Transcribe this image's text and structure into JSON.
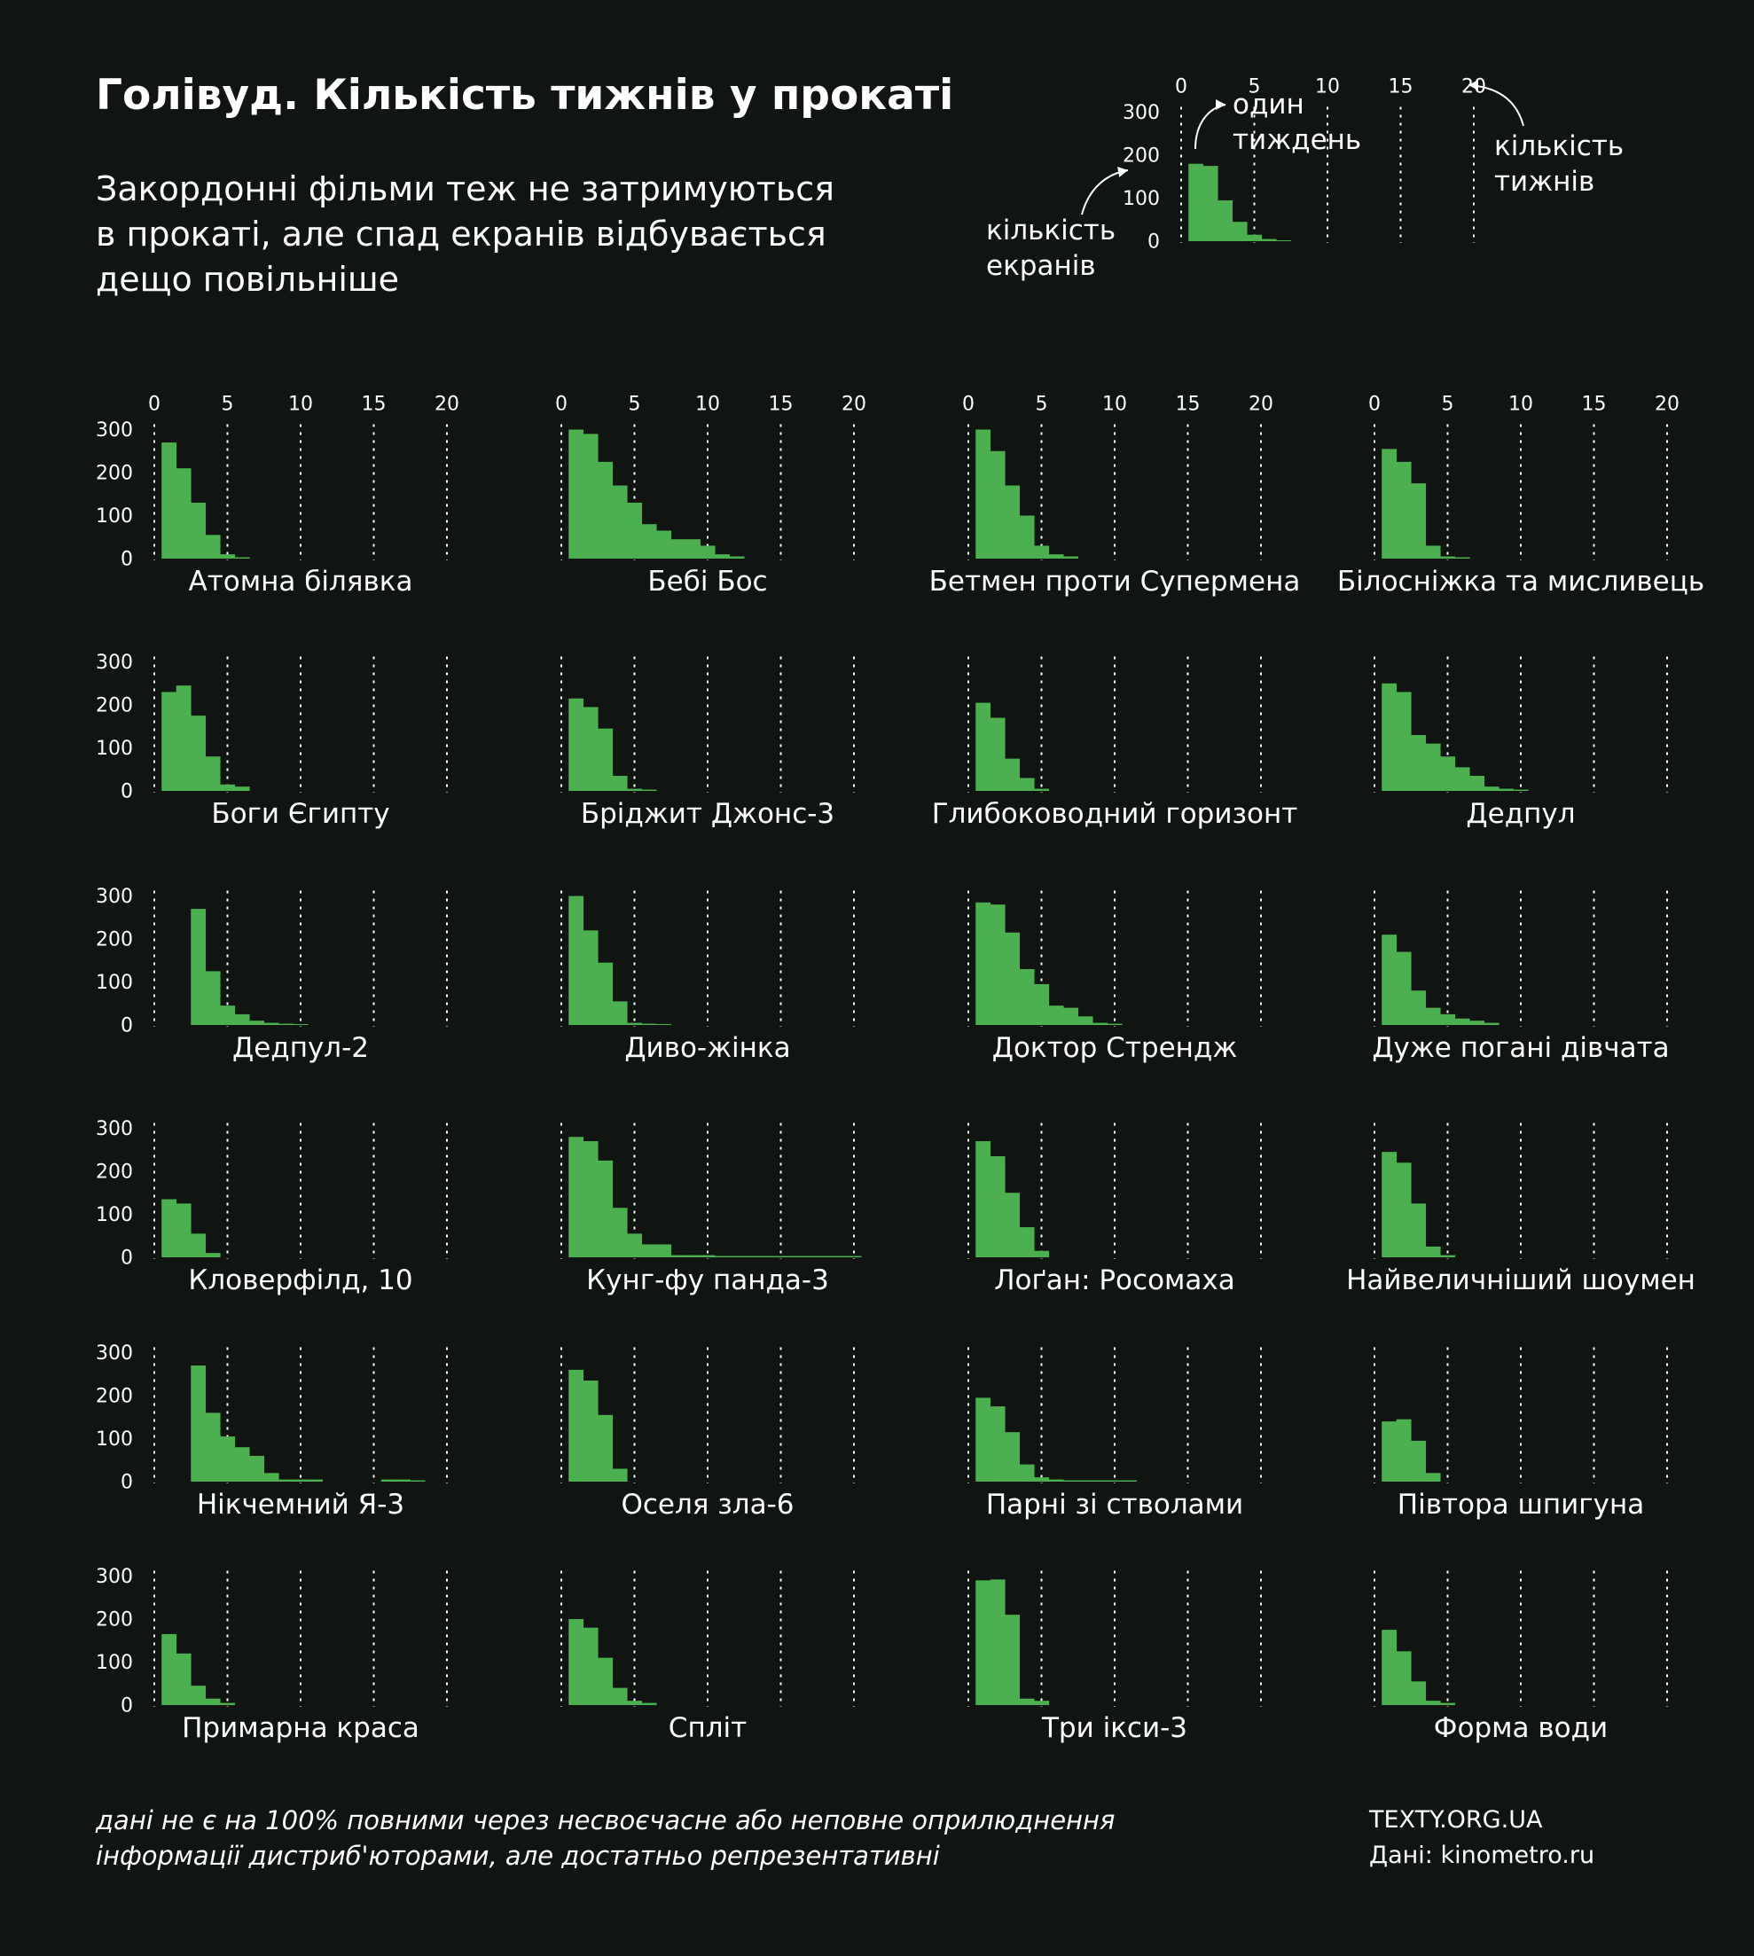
{
  "title": "Голівуд. Кількість тижнів у прокаті",
  "subtitle_lines": [
    "Закордонні фільми теж не затримуються",
    "в прокаті, але спад екранів відбувається",
    "дещо повільніше"
  ],
  "legend": {
    "one_week": [
      "один",
      "тиждень"
    ],
    "weeks_count": [
      "кількість",
      "тижнів"
    ],
    "screens_count": [
      "кількість",
      "екранів"
    ],
    "values": [
      180,
      175,
      95,
      45,
      15,
      5,
      2
    ]
  },
  "footnote": [
    "дані не є на 100% повними через несвоєчасне або неповне оприлюднення",
    "інформації дистриб'юторами, але достатньо репрезентативні"
  ],
  "source": {
    "site": "TEXTY.ORG.UA",
    "data": "Дані: kinometro.ru"
  },
  "colors": {
    "background": "#111512",
    "bar": "#4cb050",
    "grid": "#ffffff",
    "text": "#ffffff"
  },
  "chart_data": {
    "type": "bar",
    "xlabel": "",
    "ylabel": "",
    "xticks": [
      0,
      5,
      10,
      15,
      20
    ],
    "yticks": [
      0,
      100,
      200,
      300
    ],
    "xlim": [
      0,
      20
    ],
    "ylim": [
      0,
      300
    ],
    "films": [
      {
        "name": "Атомна білявка",
        "start": 1,
        "values": [
          270,
          210,
          130,
          55,
          10,
          3
        ]
      },
      {
        "name": "Бебі Бос",
        "start": 1,
        "values": [
          300,
          290,
          225,
          170,
          130,
          80,
          65,
          45,
          45,
          30,
          10,
          5
        ]
      },
      {
        "name": "Бетмен проти Супермена",
        "start": 1,
        "values": [
          300,
          250,
          170,
          100,
          30,
          10,
          5
        ]
      },
      {
        "name": "Білосніжка та мисливець",
        "start": 1,
        "values": [
          255,
          225,
          175,
          30,
          5,
          3
        ]
      },
      {
        "name": "Боги Єгипту",
        "start": 1,
        "values": [
          230,
          245,
          175,
          80,
          15,
          10
        ]
      },
      {
        "name": "Бріджит Джонс-3",
        "start": 1,
        "values": [
          215,
          195,
          145,
          35,
          5,
          3
        ]
      },
      {
        "name": "Глибоководний горизонт",
        "start": 1,
        "values": [
          205,
          170,
          75,
          30,
          5
        ]
      },
      {
        "name": "Дедпул",
        "start": 1,
        "values": [
          250,
          230,
          130,
          110,
          80,
          55,
          35,
          10,
          5,
          3
        ]
      },
      {
        "name": "Дедпул-2",
        "start": 3,
        "values": [
          270,
          125,
          45,
          25,
          10,
          5,
          3,
          2
        ]
      },
      {
        "name": "Диво-жінка",
        "start": 1,
        "values": [
          300,
          220,
          145,
          55,
          5,
          3,
          2
        ]
      },
      {
        "name": "Доктор Стрендж",
        "start": 1,
        "values": [
          285,
          280,
          215,
          130,
          95,
          45,
          40,
          20,
          5,
          3
        ]
      },
      {
        "name": "Дуже погані дівчата",
        "start": 1,
        "values": [
          210,
          170,
          80,
          40,
          25,
          15,
          10,
          5
        ]
      },
      {
        "name": "Кловерфілд, 10",
        "start": 1,
        "values": [
          135,
          125,
          55,
          10
        ]
      },
      {
        "name": "Кунг-фу панда-3",
        "start": 1,
        "values": [
          280,
          270,
          225,
          115,
          55,
          30,
          30,
          5,
          5,
          5,
          3,
          3,
          3,
          3,
          3,
          3,
          3,
          3,
          3,
          3
        ]
      },
      {
        "name": "Лоґан: Росомаха",
        "start": 1,
        "values": [
          270,
          235,
          150,
          70,
          15
        ]
      },
      {
        "name": "Найвеличніший шоумен",
        "start": 1,
        "values": [
          245,
          220,
          125,
          25,
          5
        ]
      },
      {
        "name": "Нікчемний Я-3",
        "start": 3,
        "values": [
          270,
          160,
          105,
          80,
          60,
          20,
          5,
          5,
          5,
          0,
          0,
          0,
          0,
          5,
          5,
          3
        ]
      },
      {
        "name": "Оселя зла-6",
        "start": 1,
        "values": [
          260,
          235,
          155,
          30
        ]
      },
      {
        "name": "Парні зі стволами",
        "start": 1,
        "values": [
          195,
          175,
          115,
          40,
          10,
          5,
          3,
          3,
          3,
          3,
          3
        ]
      },
      {
        "name": "Півтора шпигуна",
        "start": 1,
        "values": [
          140,
          145,
          95,
          20
        ]
      },
      {
        "name": "Примарна краса",
        "start": 1,
        "values": [
          165,
          120,
          45,
          15,
          5
        ]
      },
      {
        "name": "Спліт",
        "start": 1,
        "values": [
          200,
          180,
          110,
          40,
          10,
          5
        ]
      },
      {
        "name": "Три ікси-3",
        "start": 1,
        "values": [
          290,
          292,
          210,
          15,
          10
        ]
      },
      {
        "name": "Форма води",
        "start": 1,
        "values": [
          175,
          125,
          55,
          10,
          5
        ]
      }
    ]
  }
}
